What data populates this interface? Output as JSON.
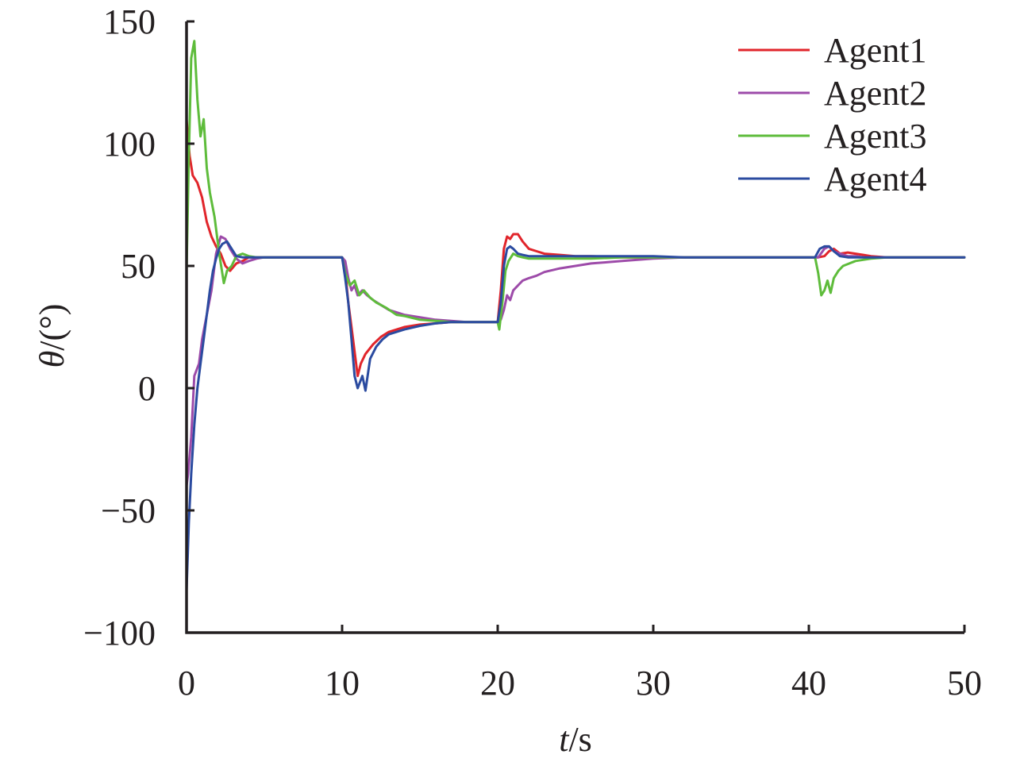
{
  "chart_data": {
    "type": "line",
    "title": "",
    "xlabel": {
      "var": "t",
      "rest": "/s"
    },
    "ylabel": {
      "var": "θ",
      "rest": "/(°)"
    },
    "xlim": [
      0,
      50
    ],
    "ylim": [
      -100,
      150
    ],
    "xticks": [
      0,
      10,
      20,
      30,
      40,
      50
    ],
    "yticks": [
      150,
      100,
      50,
      0,
      -50,
      -100
    ],
    "ytick_labels": [
      "150",
      "100",
      "50",
      "0",
      "−50",
      "−100"
    ],
    "grid": false,
    "legend_position": "top-right",
    "series": [
      {
        "name": "Agent1",
        "color": "#e1252b",
        "x": [
          0,
          0.2,
          0.4,
          0.7,
          1.0,
          1.3,
          1.6,
          1.9,
          2.2,
          2.5,
          2.8,
          3.2,
          3.6,
          4.0,
          4.5,
          5,
          6,
          7,
          8,
          9,
          10,
          10.2,
          10.4,
          10.6,
          10.8,
          11.0,
          11.2,
          11.5,
          12.0,
          12.5,
          13,
          14,
          15,
          16,
          17,
          18,
          19,
          20,
          20.2,
          20.4,
          20.6,
          20.8,
          21.0,
          21.3,
          21.6,
          22.0,
          22.5,
          23,
          24,
          25,
          26,
          28,
          30,
          32,
          35,
          38,
          40,
          40.6,
          41.0,
          41.3,
          41.6,
          42.0,
          42.5,
          43.0,
          43.5,
          44,
          45,
          46,
          48,
          50
        ],
        "y": [
          110,
          95,
          87,
          84,
          78,
          68,
          62,
          58,
          55,
          50,
          48,
          51,
          52,
          53.5,
          53.5,
          53.5,
          53.5,
          53.5,
          53.5,
          53.5,
          53.5,
          48,
          35,
          25,
          15,
          5,
          10,
          14,
          18,
          21,
          23,
          25,
          26,
          26.5,
          27,
          27,
          27,
          27,
          40,
          57,
          62,
          61,
          63,
          63,
          60,
          57,
          56,
          55,
          54.5,
          54,
          54,
          53.5,
          53.5,
          53.5,
          53.5,
          53.5,
          53.5,
          53.5,
          54,
          56,
          57,
          55,
          55.5,
          55,
          54.5,
          54,
          53.5,
          53.5,
          53.5,
          53.5
        ]
      },
      {
        "name": "Agent2",
        "color": "#9d4ba9",
        "x": [
          0,
          0.1,
          0.3,
          0.5,
          0.8,
          1.0,
          1.3,
          1.6,
          1.9,
          2.2,
          2.5,
          2.8,
          3.2,
          3.6,
          4.0,
          4.5,
          5,
          6,
          7,
          8,
          9,
          10,
          10.2,
          10.4,
          10.6,
          10.8,
          11.0,
          11.3,
          11.6,
          12.0,
          12.5,
          13,
          14,
          15,
          16,
          17,
          18,
          19,
          20,
          20.2,
          20.4,
          20.6,
          20.8,
          21.0,
          21.3,
          21.6,
          22.0,
          22.5,
          23,
          24,
          25,
          26,
          27,
          28,
          29,
          30,
          32,
          35,
          38,
          40,
          40.6,
          41.0,
          41.3,
          41.6,
          42.0,
          42.5,
          43.0,
          43.5,
          44,
          45,
          46,
          48,
          50
        ],
        "y": [
          -40,
          -35,
          -20,
          5,
          10,
          20,
          30,
          40,
          55,
          62,
          61,
          57,
          53,
          51,
          52,
          53,
          53.5,
          53.5,
          53.5,
          53.5,
          53.5,
          53.5,
          52,
          45,
          40,
          42,
          38,
          40,
          38,
          36,
          34,
          32,
          30,
          29,
          28,
          27.5,
          27,
          27,
          27,
          28,
          32,
          38,
          36,
          40,
          42,
          44,
          45,
          46,
          47.5,
          49,
          50,
          51,
          51.5,
          52,
          52.5,
          53,
          53.5,
          53.5,
          53.5,
          53.5,
          53.5,
          57,
          58,
          56,
          55,
          54,
          54,
          53.5,
          53.5,
          53.5,
          53.5,
          53.5,
          53.5
        ]
      },
      {
        "name": "Agent3",
        "color": "#5ebc3b",
        "x": [
          0,
          0.15,
          0.3,
          0.5,
          0.7,
          0.9,
          1.1,
          1.3,
          1.5,
          1.8,
          2.1,
          2.4,
          2.6,
          2.9,
          3.2,
          3.6,
          4.0,
          4.5,
          5,
          6,
          7,
          8,
          9,
          10,
          10.2,
          10.5,
          10.8,
          11.1,
          11.4,
          11.8,
          12.2,
          12.8,
          13.5,
          14,
          15,
          16,
          17,
          18,
          19,
          20,
          20.1,
          20.3,
          20.5,
          20.7,
          21.0,
          21.3,
          21.6,
          22.0,
          23,
          24,
          26,
          28,
          30,
          32,
          35,
          38,
          40,
          40.4,
          40.6,
          40.8,
          41.0,
          41.2,
          41.4,
          41.6,
          41.9,
          42.2,
          42.6,
          43.0,
          43.5,
          44,
          45,
          46,
          48,
          50
        ],
        "y": [
          48,
          95,
          135,
          142,
          118,
          103,
          110,
          90,
          80,
          70,
          55,
          43,
          48,
          50,
          54,
          55,
          54,
          53.5,
          53.5,
          53.5,
          53.5,
          53.5,
          53.5,
          53.5,
          47,
          42,
          44,
          38,
          40,
          37,
          35,
          33,
          30,
          29.5,
          28,
          27.5,
          27,
          27,
          27,
          27,
          24,
          35,
          48,
          52,
          55,
          54,
          53.5,
          53,
          53,
          53,
          53,
          53.5,
          53.5,
          53.5,
          53.5,
          53.5,
          53.5,
          53.5,
          47,
          38,
          40,
          44,
          39,
          45,
          48,
          50,
          51,
          52,
          52.5,
          53,
          53.5,
          53.5,
          53.5,
          53.5
        ]
      },
      {
        "name": "Agent4",
        "color": "#2b4ba0",
        "x": [
          0,
          0.15,
          0.3,
          0.5,
          0.7,
          0.9,
          1.1,
          1.3,
          1.5,
          1.7,
          1.9,
          2.1,
          2.3,
          2.6,
          2.9,
          3.2,
          3.6,
          4.0,
          4.5,
          5,
          6,
          7,
          8,
          9,
          10,
          10.2,
          10.4,
          10.6,
          10.8,
          11.0,
          11.3,
          11.5,
          11.8,
          12.2,
          12.6,
          13,
          14,
          15,
          16,
          17,
          18,
          19,
          20,
          20.2,
          20.4,
          20.6,
          20.8,
          21.0,
          21.3,
          21.6,
          22.0,
          22.5,
          23,
          24,
          25,
          26,
          28,
          30,
          32,
          35,
          38,
          40,
          40.4,
          40.7,
          41.0,
          41.3,
          41.6,
          42.0,
          42.5,
          43.0,
          43.5,
          44,
          45,
          46,
          48,
          50
        ],
        "y": [
          -83,
          -55,
          -35,
          -15,
          0,
          10,
          20,
          30,
          40,
          48,
          53,
          57,
          59,
          60,
          57,
          54,
          53.5,
          53.5,
          53.5,
          53.5,
          53.5,
          53.5,
          53.5,
          53.5,
          53.5,
          45,
          35,
          20,
          5,
          0,
          5,
          -1,
          12,
          17,
          20,
          22,
          24,
          25.5,
          26.5,
          27,
          27,
          27,
          27,
          35,
          50,
          57,
          58,
          57,
          55,
          54.5,
          54,
          54,
          54,
          54,
          54,
          54,
          54,
          54,
          53.5,
          53.5,
          53.5,
          53.5,
          53.5,
          57,
          58,
          58,
          56,
          54,
          53.5,
          53.5,
          53.5,
          53.5,
          53.5,
          53.5,
          53.5,
          53.5
        ]
      }
    ]
  }
}
